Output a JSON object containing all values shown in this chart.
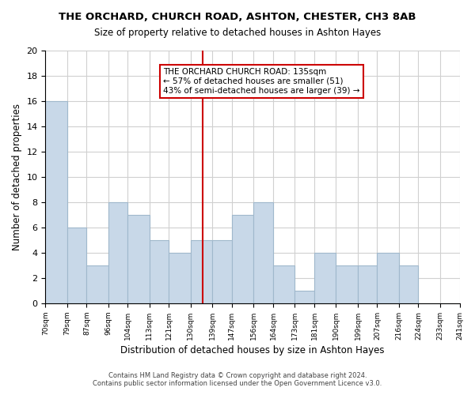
{
  "title": "THE ORCHARD, CHURCH ROAD, ASHTON, CHESTER, CH3 8AB",
  "subtitle": "Size of property relative to detached houses in Ashton Hayes",
  "xlabel": "Distribution of detached houses by size in Ashton Hayes",
  "ylabel": "Number of detached properties",
  "bar_color": "#c8d8e8",
  "bar_edge_color": "#a0b8cc",
  "bins": [
    70,
    79,
    87,
    96,
    104,
    113,
    121,
    130,
    139,
    147,
    156,
    164,
    173,
    181,
    190,
    199,
    207,
    216,
    224,
    233,
    241
  ],
  "bin_labels": [
    "70sqm",
    "79sqm",
    "87sqm",
    "96sqm",
    "104sqm",
    "113sqm",
    "121sqm",
    "130sqm",
    "139sqm",
    "147sqm",
    "156sqm",
    "164sqm",
    "173sqm",
    "181sqm",
    "190sqm",
    "199sqm",
    "207sqm",
    "216sqm",
    "224sqm",
    "233sqm",
    "241sqm"
  ],
  "counts": [
    16,
    6,
    3,
    8,
    7,
    5,
    4,
    5,
    5,
    7,
    8,
    3,
    1,
    4,
    3,
    3,
    4,
    3,
    0,
    0,
    0
  ],
  "reference_line_x": 135,
  "reference_line_label": "THE ORCHARD CHURCH ROAD: 135sqm",
  "annotation_line1": "← 57% of detached houses are smaller (51)",
  "annotation_line2": "43% of semi-detached houses are larger (39) →",
  "ylim": [
    0,
    20
  ],
  "yticks": [
    0,
    2,
    4,
    6,
    8,
    10,
    12,
    14,
    16,
    18,
    20
  ],
  "grid_color": "#d0d0d0",
  "ref_line_color": "#cc0000",
  "annotation_box_edge": "#cc0000",
  "footer_line1": "Contains HM Land Registry data © Crown copyright and database right 2024.",
  "footer_line2": "Contains public sector information licensed under the Open Government Licence v3.0."
}
